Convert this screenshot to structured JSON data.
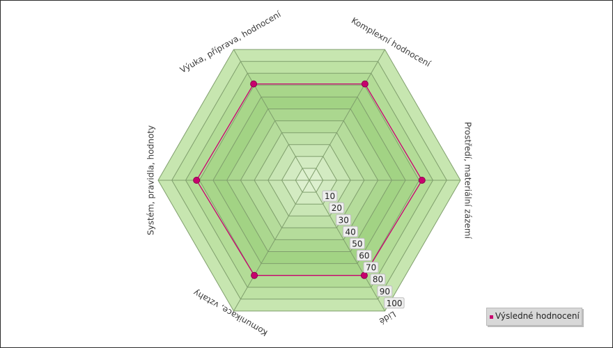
{
  "chart_data": {
    "type": "radar",
    "axes": [
      "Komplexní hodnocení",
      "Prostředí, materiální zázemí",
      "Lidé",
      "Komunikace, vztahy",
      "Systém, pravidla, hodnoty",
      "Výuka, příprava,  hodnocení"
    ],
    "series": [
      {
        "name": "Výsledné hodnocení",
        "values": [
          81,
          82,
          80,
          80,
          82,
          81
        ],
        "color": "#c8006e"
      }
    ],
    "rlim": [
      0,
      110
    ],
    "ticks": [
      10,
      20,
      30,
      40,
      50,
      60,
      70,
      80,
      90,
      100
    ],
    "legend": "bottom-right",
    "band_colors": [
      "#ddf0cf",
      "#d3ebc2",
      "#c9e6b5",
      "#bfe1a8",
      "#b5dc9b",
      "#abd78f",
      "#a2d384",
      "#a8d68a",
      "#b3dc97",
      "#bee2a4",
      "#c7e6b0"
    ]
  }
}
